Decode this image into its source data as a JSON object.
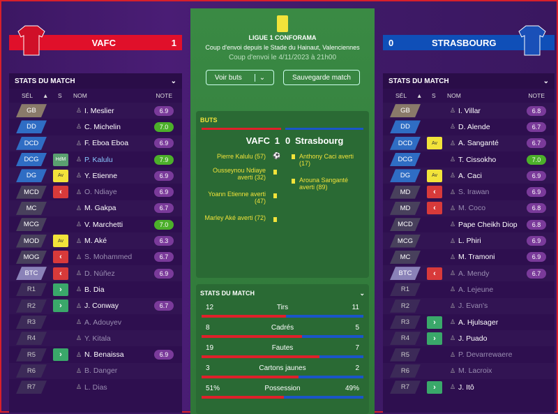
{
  "home": {
    "name": "VAFC",
    "score": "1",
    "color": "#e0102a"
  },
  "away": {
    "name": "STRASBOURG",
    "score": "0",
    "color": "#0f4fb8"
  },
  "center": {
    "league": "LIGUE 1 CONFORAMA",
    "venue": "Coup d'envoi depuis le Stade du Hainaut, Valenciennes",
    "kickoff": "Coup d'envoi le 4/11/2023 à 21h00",
    "btn_goals": "Voir buts",
    "btn_save": "Sauvegarde match"
  },
  "goals_panel": {
    "title": "BUTS",
    "home": "VAFC",
    "home_score": "1",
    "away_score": "0",
    "away": "Strasbourg",
    "home_events": [
      "Pierre Kalulu (57)",
      "Ousseynou Ndiaye averti (32)",
      "Yoann Etienne averti (47)",
      "Marley Aké averti (72)"
    ],
    "away_events": [
      "Anthony Caci averti (17)",
      "Arouna Sanganté averti (89)"
    ]
  },
  "stats_panel": {
    "title": "STATS DU MATCH",
    "rows": [
      {
        "label": "Tirs",
        "home": "12",
        "away": "11",
        "hfrac": 0.52
      },
      {
        "label": "Cadrés",
        "home": "8",
        "away": "5",
        "hfrac": 0.62
      },
      {
        "label": "Fautes",
        "home": "19",
        "away": "7",
        "hfrac": 0.73
      },
      {
        "label": "Cartons jaunes",
        "home": "3",
        "away": "2",
        "hfrac": 0.6
      },
      {
        "label": "Possession",
        "home": "51%",
        "away": "49%",
        "hfrac": 0.51
      }
    ]
  },
  "left_panel": {
    "title": "STATS DU MATCH",
    "cols": {
      "sel": "SÉL",
      "s": "S",
      "nom": "NOM",
      "note": "NOTE"
    },
    "players": [
      {
        "pos": "GB",
        "type": "gk",
        "badge": "",
        "name": "I. Meslier",
        "rating": "6.9",
        "good": false,
        "dim": false
      },
      {
        "pos": "DD",
        "type": "def",
        "badge": "",
        "name": "C. Michelin",
        "rating": "7.0",
        "good": true,
        "dim": false
      },
      {
        "pos": "DCD",
        "type": "def",
        "badge": "",
        "name": "F. Eboa Eboa",
        "rating": "6.9",
        "good": false,
        "dim": false
      },
      {
        "pos": "DCG",
        "type": "def",
        "badge": "HdM",
        "name": "P. Kalulu",
        "rating": "7.9",
        "good": true,
        "dim": false,
        "hl": true
      },
      {
        "pos": "DG",
        "type": "def",
        "badge": "Av",
        "name": "Y. Etienne",
        "rating": "6.9",
        "good": false,
        "dim": false
      },
      {
        "pos": "MCD",
        "type": "mid",
        "badge": "out",
        "name": "O. Ndiaye",
        "rating": "6.9",
        "good": false,
        "dim": true
      },
      {
        "pos": "MC",
        "type": "mid",
        "badge": "",
        "name": "M. Gakpa",
        "rating": "6.7",
        "good": false,
        "dim": false
      },
      {
        "pos": "MCG",
        "type": "mid",
        "badge": "",
        "name": "V. Marchetti",
        "rating": "7.0",
        "good": true,
        "dim": false
      },
      {
        "pos": "MOD",
        "type": "mid",
        "badge": "Av",
        "name": "M. Aké",
        "rating": "6.3",
        "good": false,
        "dim": false
      },
      {
        "pos": "MOG",
        "type": "mid",
        "badge": "out",
        "name": "S. Mohammed",
        "rating": "6.7",
        "good": false,
        "dim": true
      },
      {
        "pos": "BTC",
        "type": "att",
        "badge": "out",
        "name": "D. Núñez",
        "rating": "6.9",
        "good": false,
        "dim": true
      },
      {
        "pos": "R1",
        "type": "res",
        "badge": "in",
        "name": "B. Dia",
        "rating": "",
        "good": false,
        "dim": false
      },
      {
        "pos": "R2",
        "type": "res",
        "badge": "in",
        "name": "J. Conway",
        "rating": "6.7",
        "good": false,
        "dim": false
      },
      {
        "pos": "R3",
        "type": "res",
        "badge": "",
        "name": "A. Adouyev",
        "rating": "",
        "good": false,
        "dim": true
      },
      {
        "pos": "R4",
        "type": "res",
        "badge": "",
        "name": "Y. Kitala",
        "rating": "",
        "good": false,
        "dim": true
      },
      {
        "pos": "R5",
        "type": "res",
        "badge": "in",
        "name": "N. Benaissa",
        "rating": "6.9",
        "good": false,
        "dim": false
      },
      {
        "pos": "R6",
        "type": "res",
        "badge": "",
        "name": "B. Danger",
        "rating": "",
        "good": false,
        "dim": true
      },
      {
        "pos": "R7",
        "type": "res",
        "badge": "",
        "name": "L. Dias",
        "rating": "",
        "good": false,
        "dim": true
      }
    ]
  },
  "right_panel": {
    "title": "STATS DU MATCH",
    "cols": {
      "sel": "SÉL",
      "s": "S",
      "nom": "NOM",
      "note": "NOTE"
    },
    "players": [
      {
        "pos": "GB",
        "type": "gk",
        "badge": "",
        "name": "I. Villar",
        "rating": "6.8",
        "good": false,
        "dim": false
      },
      {
        "pos": "DD",
        "type": "def",
        "badge": "",
        "name": "D. Alende",
        "rating": "6.7",
        "good": false,
        "dim": false
      },
      {
        "pos": "DCD",
        "type": "def",
        "badge": "Av",
        "name": "A. Sanganté",
        "rating": "6.7",
        "good": false,
        "dim": false
      },
      {
        "pos": "DCG",
        "type": "def",
        "badge": "",
        "name": "T. Cissokho",
        "rating": "7.0",
        "good": true,
        "dim": false
      },
      {
        "pos": "DG",
        "type": "def",
        "badge": "Av",
        "name": "A. Caci",
        "rating": "6.9",
        "good": false,
        "dim": false
      },
      {
        "pos": "MD",
        "type": "mid",
        "badge": "out",
        "name": "S. Irawan",
        "rating": "6.9",
        "good": false,
        "dim": true
      },
      {
        "pos": "MD",
        "type": "mid",
        "badge": "out",
        "name": "M. Coco",
        "rating": "6.8",
        "good": false,
        "dim": true
      },
      {
        "pos": "MCD",
        "type": "mid",
        "badge": "",
        "name": "Pape Cheikh Diop",
        "rating": "6.8",
        "good": false,
        "dim": false
      },
      {
        "pos": "MCG",
        "type": "mid",
        "badge": "",
        "name": "L. Phiri",
        "rating": "6.9",
        "good": false,
        "dim": false
      },
      {
        "pos": "MC",
        "type": "mid",
        "badge": "",
        "name": "M. Tramoni",
        "rating": "6.9",
        "good": false,
        "dim": false
      },
      {
        "pos": "BTC",
        "type": "att",
        "badge": "out",
        "name": "A. Mendy",
        "rating": "6.7",
        "good": false,
        "dim": true
      },
      {
        "pos": "R1",
        "type": "res",
        "badge": "",
        "name": "A. Lejeune",
        "rating": "",
        "good": false,
        "dim": true
      },
      {
        "pos": "R2",
        "type": "res",
        "badge": "",
        "name": "J. Evan's",
        "rating": "",
        "good": false,
        "dim": true
      },
      {
        "pos": "R3",
        "type": "res",
        "badge": "in",
        "name": "A. Hjulsager",
        "rating": "",
        "good": false,
        "dim": false
      },
      {
        "pos": "R4",
        "type": "res",
        "badge": "in",
        "name": "J. Puado",
        "rating": "",
        "good": false,
        "dim": false
      },
      {
        "pos": "R5",
        "type": "res",
        "badge": "",
        "name": "P. Devarrewaere",
        "rating": "",
        "good": false,
        "dim": true
      },
      {
        "pos": "R6",
        "type": "res",
        "badge": "",
        "name": "M. Lacroix",
        "rating": "",
        "good": false,
        "dim": true
      },
      {
        "pos": "R7",
        "type": "res",
        "badge": "in",
        "name": "J. Itô",
        "rating": "",
        "good": false,
        "dim": false
      }
    ]
  }
}
